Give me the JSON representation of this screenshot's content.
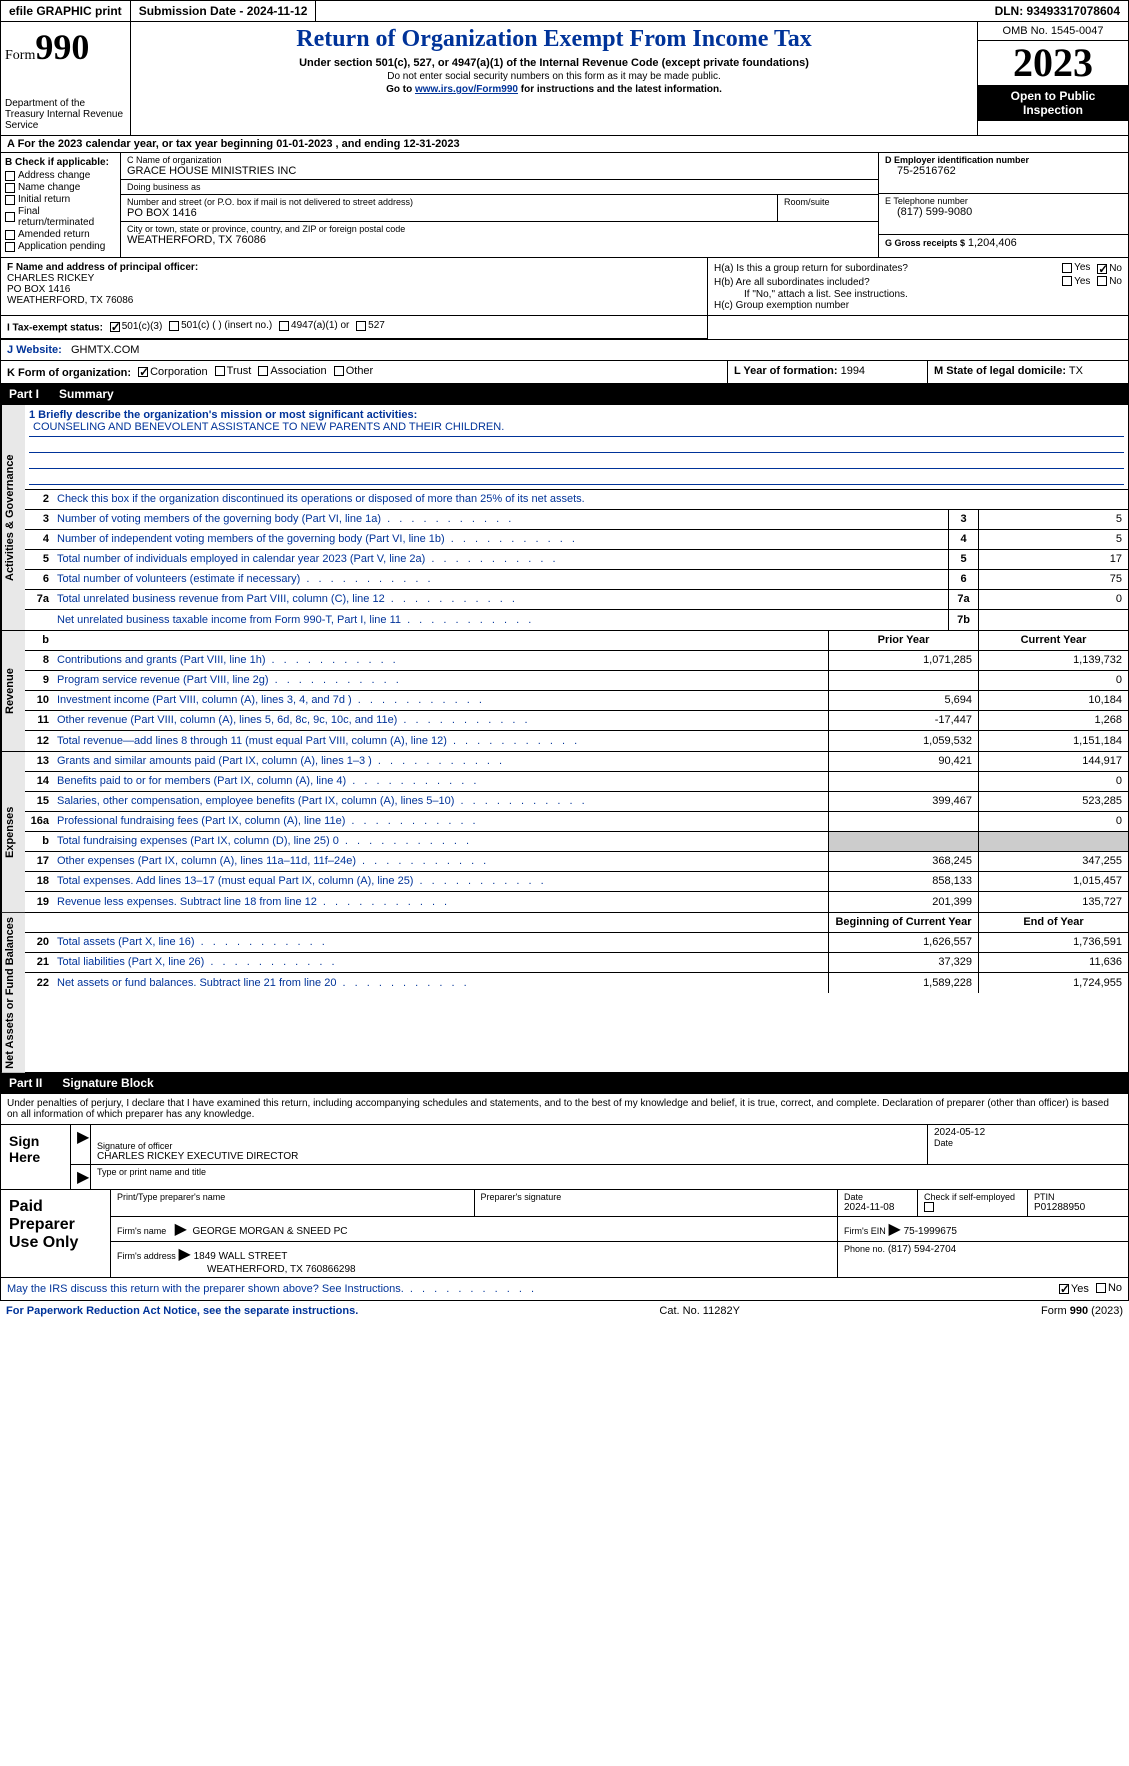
{
  "topbar": {
    "efile": "efile GRAPHIC print",
    "submission": "Submission Date - 2024-11-12",
    "dln": "DLN: 93493317078604"
  },
  "header": {
    "form_prefix": "Form",
    "form_num": "990",
    "dept": "Department of the Treasury Internal Revenue Service",
    "title": "Return of Organization Exempt From Income Tax",
    "sub": "Under section 501(c), 527, or 4947(a)(1) of the Internal Revenue Code (except private foundations)",
    "note1": "Do not enter social security numbers on this form as it may be made public.",
    "note2_pre": "Go to ",
    "note2_link": "www.irs.gov/Form990",
    "note2_post": " for instructions and the latest information.",
    "omb": "OMB No. 1545-0047",
    "year": "2023",
    "open": "Open to Public Inspection"
  },
  "row_a": "A For the 2023 calendar year, or tax year beginning 01-01-2023   , and ending 12-31-2023",
  "box_b": {
    "hdr": "B Check if applicable:",
    "opts": [
      "Address change",
      "Name change",
      "Initial return",
      "Final return/terminated",
      "Amended return",
      "Application pending"
    ]
  },
  "box_c": {
    "name_lbl": "C Name of organization",
    "name": "GRACE HOUSE MINISTRIES INC",
    "dba_lbl": "Doing business as",
    "dba": "",
    "street_lbl": "Number and street (or P.O. box if mail is not delivered to street address)",
    "street": "PO BOX 1416",
    "room_lbl": "Room/suite",
    "room": "",
    "city_lbl": "City or town, state or province, country, and ZIP or foreign postal code",
    "city": "WEATHERFORD, TX  76086"
  },
  "box_d": {
    "ein_lbl": "D Employer identification number",
    "ein": "75-2516762",
    "tel_lbl": "E Telephone number",
    "tel": "(817) 599-9080",
    "gross_lbl": "G Gross receipts $",
    "gross": "1,204,406"
  },
  "box_f": {
    "lbl": "F  Name and address of principal officer:",
    "name": "CHARLES RICKEY",
    "addr1": "PO BOX 1416",
    "addr2": "WEATHERFORD, TX  76086"
  },
  "box_h": {
    "a_lbl": "H(a)  Is this a group return for subordinates?",
    "b_lbl": "H(b)  Are all subordinates included?",
    "b_note": "If \"No,\" attach a list. See instructions.",
    "c_lbl": "H(c)  Group exemption number"
  },
  "tax_status": {
    "lbl": "I  Tax-exempt status:",
    "o1": "501(c)(3)",
    "o2": "501(c) (  ) (insert no.)",
    "o3": "4947(a)(1) or",
    "o4": "527"
  },
  "website": {
    "lbl": "J  Website:",
    "val": "GHMTX.COM"
  },
  "row_k": {
    "lbl": "K Form of organization:",
    "o1": "Corporation",
    "o2": "Trust",
    "o3": "Association",
    "o4": "Other",
    "l_lbl": "L Year of formation:",
    "l_val": "1994",
    "m_lbl": "M State of legal domicile:",
    "m_val": "TX"
  },
  "part1": {
    "label": "Part I",
    "title": "Summary"
  },
  "summary": {
    "mission_lbl": "1  Briefly describe the organization's mission or most significant activities:",
    "mission": "COUNSELING AND BENEVOLENT ASSISTANCE TO NEW PARENTS AND THEIR CHILDREN.",
    "line2": "Check this box      if the organization discontinued its operations or disposed of more than 25% of its net assets.",
    "rows_gov": [
      {
        "n": "3",
        "d": "Number of voting members of the governing body (Part VI, line 1a)",
        "b": "3",
        "v": "5"
      },
      {
        "n": "4",
        "d": "Number of independent voting members of the governing body (Part VI, line 1b)",
        "b": "4",
        "v": "5"
      },
      {
        "n": "5",
        "d": "Total number of individuals employed in calendar year 2023 (Part V, line 2a)",
        "b": "5",
        "v": "17"
      },
      {
        "n": "6",
        "d": "Total number of volunteers (estimate if necessary)",
        "b": "6",
        "v": "75"
      },
      {
        "n": "7a",
        "d": "Total unrelated business revenue from Part VIII, column (C), line 12",
        "b": "7a",
        "v": "0"
      },
      {
        "n": "",
        "d": "Net unrelated business taxable income from Form 990-T, Part I, line 11",
        "b": "7b",
        "v": ""
      }
    ],
    "hdr_prior": "Prior Year",
    "hdr_current": "Current Year",
    "revenue": [
      {
        "n": "8",
        "d": "Contributions and grants (Part VIII, line 1h)",
        "p": "1,071,285",
        "c": "1,139,732"
      },
      {
        "n": "9",
        "d": "Program service revenue (Part VIII, line 2g)",
        "p": "",
        "c": "0"
      },
      {
        "n": "10",
        "d": "Investment income (Part VIII, column (A), lines 3, 4, and 7d )",
        "p": "5,694",
        "c": "10,184"
      },
      {
        "n": "11",
        "d": "Other revenue (Part VIII, column (A), lines 5, 6d, 8c, 9c, 10c, and 11e)",
        "p": "-17,447",
        "c": "1,268"
      },
      {
        "n": "12",
        "d": "Total revenue—add lines 8 through 11 (must equal Part VIII, column (A), line 12)",
        "p": "1,059,532",
        "c": "1,151,184"
      }
    ],
    "expenses": [
      {
        "n": "13",
        "d": "Grants and similar amounts paid (Part IX, column (A), lines 1–3 )",
        "p": "90,421",
        "c": "144,917"
      },
      {
        "n": "14",
        "d": "Benefits paid to or for members (Part IX, column (A), line 4)",
        "p": "",
        "c": "0"
      },
      {
        "n": "15",
        "d": "Salaries, other compensation, employee benefits (Part IX, column (A), lines 5–10)",
        "p": "399,467",
        "c": "523,285"
      },
      {
        "n": "16a",
        "d": "Professional fundraising fees (Part IX, column (A), line 11e)",
        "p": "",
        "c": "0"
      },
      {
        "n": "b",
        "d": "Total fundraising expenses (Part IX, column (D), line 25) 0",
        "p": "shaded",
        "c": "shaded"
      },
      {
        "n": "17",
        "d": "Other expenses (Part IX, column (A), lines 11a–11d, 11f–24e)",
        "p": "368,245",
        "c": "347,255"
      },
      {
        "n": "18",
        "d": "Total expenses. Add lines 13–17 (must equal Part IX, column (A), line 25)",
        "p": "858,133",
        "c": "1,015,457"
      },
      {
        "n": "19",
        "d": "Revenue less expenses. Subtract line 18 from line 12",
        "p": "201,399",
        "c": "135,727"
      }
    ],
    "hdr_begin": "Beginning of Current Year",
    "hdr_end": "End of Year",
    "netassets": [
      {
        "n": "20",
        "d": "Total assets (Part X, line 16)",
        "p": "1,626,557",
        "c": "1,736,591"
      },
      {
        "n": "21",
        "d": "Total liabilities (Part X, line 26)",
        "p": "37,329",
        "c": "11,636"
      },
      {
        "n": "22",
        "d": "Net assets or fund balances. Subtract line 21 from line 20",
        "p": "1,589,228",
        "c": "1,724,955"
      }
    ]
  },
  "vtabs": {
    "gov": "Activities & Governance",
    "rev": "Revenue",
    "exp": "Expenses",
    "net": "Net Assets or Fund Balances"
  },
  "part2": {
    "label": "Part II",
    "title": "Signature Block"
  },
  "penalty": "Under penalties of perjury, I declare that I have examined this return, including accompanying schedules and statements, and to the best of my knowledge and belief, it is true, correct, and complete. Declaration of preparer (other than officer) is based on all information of which preparer has any knowledge.",
  "sign": {
    "left": "Sign Here",
    "date": "2024-05-12",
    "sig_lbl": "Signature of officer",
    "officer": "CHARLES RICKEY  EXECUTIVE DIRECTOR",
    "name_lbl": "Type or print name and title",
    "date_lbl": "Date"
  },
  "prep": {
    "left": "Paid Preparer Use Only",
    "h1": "Print/Type preparer's name",
    "h2": "Preparer's signature",
    "h3": "Date",
    "date": "2024-11-08",
    "h4": "Check       if self-employed",
    "h5": "PTIN",
    "ptin": "P01288950",
    "firm_lbl": "Firm's name",
    "firm": "GEORGE MORGAN & SNEED PC",
    "ein_lbl": "Firm's EIN",
    "ein": "75-1999675",
    "addr_lbl": "Firm's address",
    "addr1": "1849 WALL STREET",
    "addr2": "WEATHERFORD, TX  760866298",
    "phone_lbl": "Phone no.",
    "phone": "(817) 594-2704"
  },
  "discuss": "May the IRS discuss this return with the preparer shown above? See Instructions.",
  "footer": {
    "left": "For Paperwork Reduction Act Notice, see the separate instructions.",
    "mid": "Cat. No. 11282Y",
    "right_pre": "Form ",
    "right_form": "990",
    "right_post": " (2023)"
  }
}
